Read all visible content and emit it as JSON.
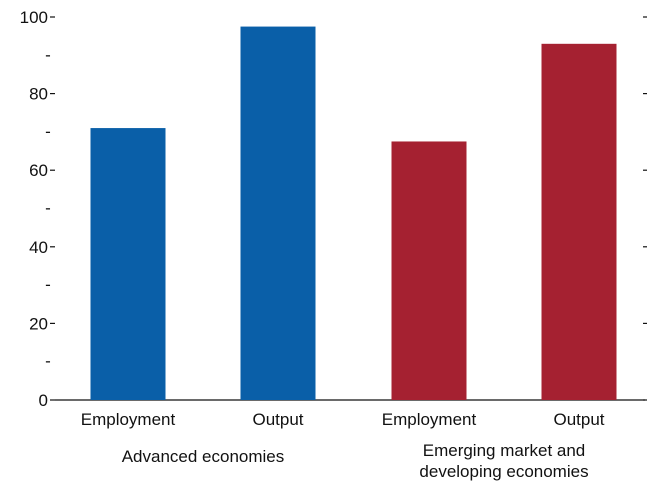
{
  "chart_data": {
    "type": "bar",
    "categories": [
      "Employment",
      "Output",
      "Employment",
      "Output"
    ],
    "groups": [
      {
        "label_lines": [
          "Advanced economies"
        ],
        "categories": [
          0,
          1
        ]
      },
      {
        "label_lines": [
          "Emerging market and",
          "developing economies"
        ],
        "categories": [
          2,
          3
        ]
      }
    ],
    "values": [
      71,
      97.5,
      67.5,
      93
    ],
    "colors": [
      "#0a5fa8",
      "#0a5fa8",
      "#a52131",
      "#a52131"
    ],
    "y_ticks": [
      0,
      20,
      40,
      60,
      80,
      100
    ],
    "y_minor_tick_labels": [
      "-",
      "-",
      "-",
      "-",
      "-"
    ],
    "ylim": [
      0,
      100
    ],
    "title": "",
    "xlabel": "",
    "ylabel": "",
    "grid": false,
    "legend": "none"
  }
}
